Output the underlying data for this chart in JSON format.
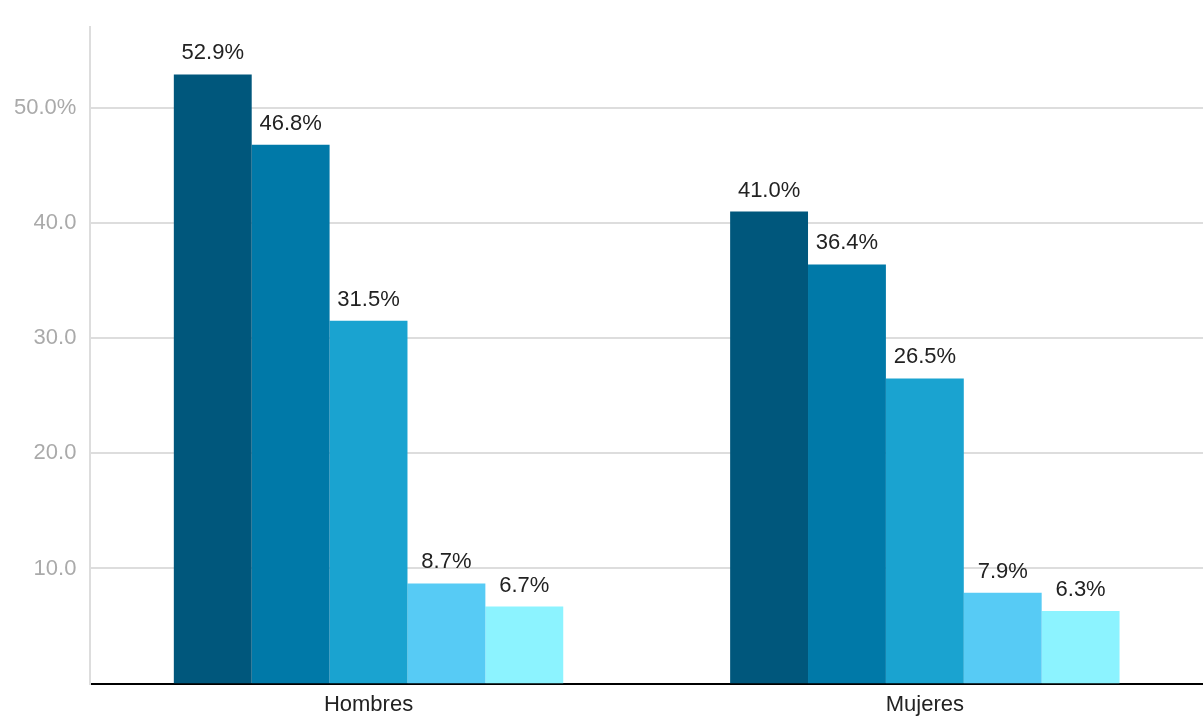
{
  "chart_data": {
    "type": "bar",
    "categories": [
      "Hombres",
      "Mujeres"
    ],
    "series": [
      {
        "color": "#00577c",
        "values": [
          52.9,
          41.0
        ],
        "value_labels": [
          "52.9%",
          "41.0%"
        ]
      },
      {
        "color": "#0079a8",
        "values": [
          46.8,
          36.4
        ],
        "value_labels": [
          "46.8%",
          "36.4%"
        ]
      },
      {
        "color": "#1aa3d0",
        "values": [
          31.5,
          26.5
        ],
        "value_labels": [
          "31.5%",
          "26.5%"
        ]
      },
      {
        "color": "#57cbf5",
        "values": [
          8.7,
          7.9
        ],
        "value_labels": [
          "8.7%",
          "7.9%"
        ]
      },
      {
        "color": "#8cf3ff",
        "values": [
          6.7,
          6.3
        ],
        "value_labels": [
          "6.7%",
          "6.3%"
        ]
      }
    ],
    "ylim": [
      0,
      57
    ],
    "yticks": [
      {
        "value": 10,
        "label": "10.0"
      },
      {
        "value": 20,
        "label": "20.0"
      },
      {
        "value": 30,
        "label": "30.0"
      },
      {
        "value": 40,
        "label": "40.0"
      },
      {
        "value": 50,
        "label": "50.0%"
      }
    ],
    "grid": "y",
    "legend": false
  }
}
